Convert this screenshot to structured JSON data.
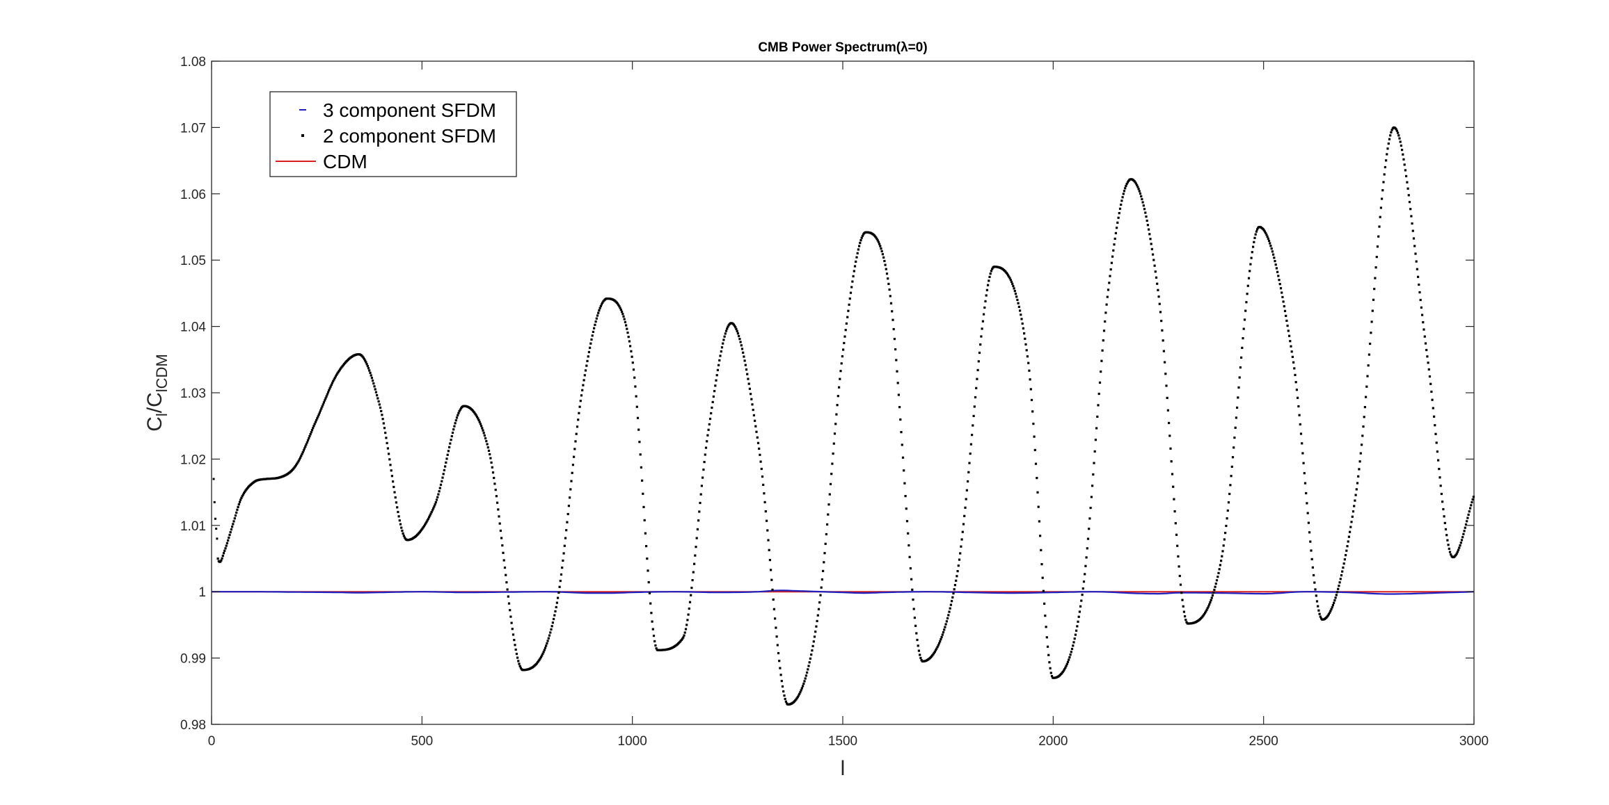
{
  "chart_data": {
    "type": "line",
    "title": "CMB Power Spectrum(λ=0)",
    "xlabel": "l",
    "ylabel": {
      "main": "C",
      "sub1": "l",
      "slash": "/C",
      "sub2": "lCDM"
    },
    "xlim": [
      0,
      3000
    ],
    "ylim": [
      0.98,
      1.08
    ],
    "xticks": [
      0,
      500,
      1000,
      1500,
      2000,
      2500,
      3000
    ],
    "yticks": [
      0.98,
      0.99,
      1,
      1.01,
      1.02,
      1.03,
      1.04,
      1.05,
      1.06,
      1.07,
      1.08
    ],
    "xtick_labels": [
      "0",
      "500",
      "1000",
      "1500",
      "2000",
      "2500",
      "3000"
    ],
    "ytick_labels": [
      "0.98",
      "0.99",
      "1",
      "1.01",
      "1.02",
      "1.03",
      "1.04",
      "1.05",
      "1.06",
      "1.07",
      "1.08"
    ],
    "grid": false,
    "legend_position": "top-left",
    "series": [
      {
        "name": "3 component SFDM",
        "style": "dash-markers",
        "color": "#1f1fbf",
        "x": [
          0,
          100,
          200,
          300,
          350,
          400,
          500,
          600,
          700,
          800,
          900,
          950,
          1000,
          1100,
          1200,
          1300,
          1350,
          1400,
          1500,
          1550,
          1600,
          1700,
          1800,
          1900,
          2000,
          2100,
          2200,
          2250,
          2300,
          2400,
          2500,
          2600,
          2700,
          2800,
          2850,
          2900,
          3000
        ],
        "y": [
          1.0,
          1.0,
          0.99995,
          0.9999,
          0.99985,
          0.9999,
          1.0,
          0.9999,
          0.99995,
          1.0,
          0.9998,
          0.9998,
          0.9999,
          1.0,
          0.9999,
          1.0,
          1.0002,
          1.0001,
          0.9999,
          0.9998,
          0.9999,
          1.0,
          0.9999,
          0.9998,
          0.9999,
          1.0,
          0.99975,
          0.9997,
          0.99985,
          0.9998,
          0.9997,
          1.0,
          0.9999,
          0.99965,
          0.9997,
          0.9998,
          1.0
        ]
      },
      {
        "name": "2 component SFDM",
        "style": "dots",
        "color": "#000000",
        "x": [
          0,
          5,
          10,
          15,
          20,
          30,
          50,
          70,
          100,
          130,
          160,
          200,
          250,
          300,
          350,
          400,
          465,
          530,
          600,
          660,
          740,
          820,
          880,
          940,
          1000,
          1060,
          1120,
          1180,
          1235,
          1300,
          1370,
          1440,
          1500,
          1555,
          1610,
          1690,
          1770,
          1860,
          1940,
          2000,
          2070,
          2130,
          2185,
          2250,
          2320,
          2400,
          2490,
          2570,
          2640,
          2720,
          2810,
          2890,
          2950,
          3000
        ],
        "y": [
          1.017,
          1.013,
          1.0085,
          1.005,
          1.0045,
          1.006,
          1.01,
          1.014,
          1.0165,
          1.017,
          1.0172,
          1.019,
          1.026,
          1.033,
          1.0358,
          1.028,
          1.0078,
          1.013,
          1.028,
          1.021,
          0.9882,
          0.998,
          1.03,
          1.0442,
          1.035,
          0.9912,
          0.993,
          1.024,
          1.0405,
          1.022,
          0.983,
          0.996,
          1.036,
          1.0542,
          1.046,
          0.9895,
          1.002,
          1.049,
          1.035,
          0.987,
          1.0,
          1.045,
          1.0622,
          1.045,
          0.9952,
          1.005,
          1.055,
          1.035,
          0.9958,
          1.015,
          1.07,
          1.035,
          1.0052,
          1.0145
        ]
      },
      {
        "name": "CDM",
        "style": "line",
        "color": "#d62020",
        "x": [
          0,
          3000
        ],
        "y": [
          1.0,
          1.0
        ]
      }
    ]
  }
}
